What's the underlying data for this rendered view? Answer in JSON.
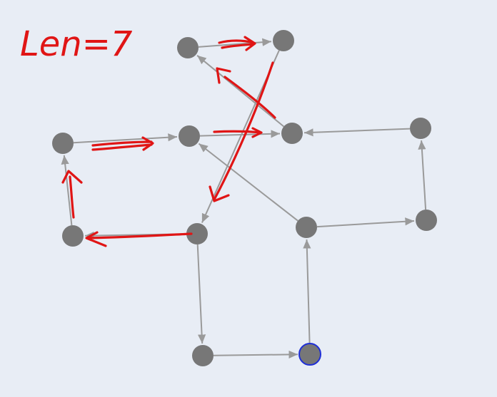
{
  "annotation": {
    "text": "Len=7"
  },
  "graph": {
    "nodes": [
      {
        "id": "n1"
      },
      {
        "id": "n2"
      },
      {
        "id": "n3"
      },
      {
        "id": "n4"
      },
      {
        "id": "n5"
      },
      {
        "id": "n6"
      },
      {
        "id": "n7"
      },
      {
        "id": "n8"
      },
      {
        "id": "n9"
      },
      {
        "id": "n10"
      },
      {
        "id": "n11"
      },
      {
        "id": "n12"
      }
    ],
    "highlighted_node": "n12",
    "edges": [
      {
        "from": "n1",
        "to": "n2"
      },
      {
        "from": "n2",
        "to": "n7"
      },
      {
        "from": "n5",
        "to": "n1"
      },
      {
        "from": "n3",
        "to": "n4"
      },
      {
        "from": "n4",
        "to": "n5"
      },
      {
        "from": "n6",
        "to": "n5"
      },
      {
        "from": "n8",
        "to": "n3"
      },
      {
        "from": "n7",
        "to": "n8"
      },
      {
        "from": "n7",
        "to": "n11"
      },
      {
        "from": "n9",
        "to": "n4"
      },
      {
        "from": "n9",
        "to": "n10"
      },
      {
        "from": "n10",
        "to": "n6"
      },
      {
        "from": "n11",
        "to": "n12"
      },
      {
        "from": "n12",
        "to": "n9"
      }
    ]
  },
  "colors": {
    "background": "#e8edf5",
    "node": "#777777",
    "edge": "#9a9a9a",
    "start_node_border": "#1f2fd6",
    "annotation": "#e01515"
  }
}
